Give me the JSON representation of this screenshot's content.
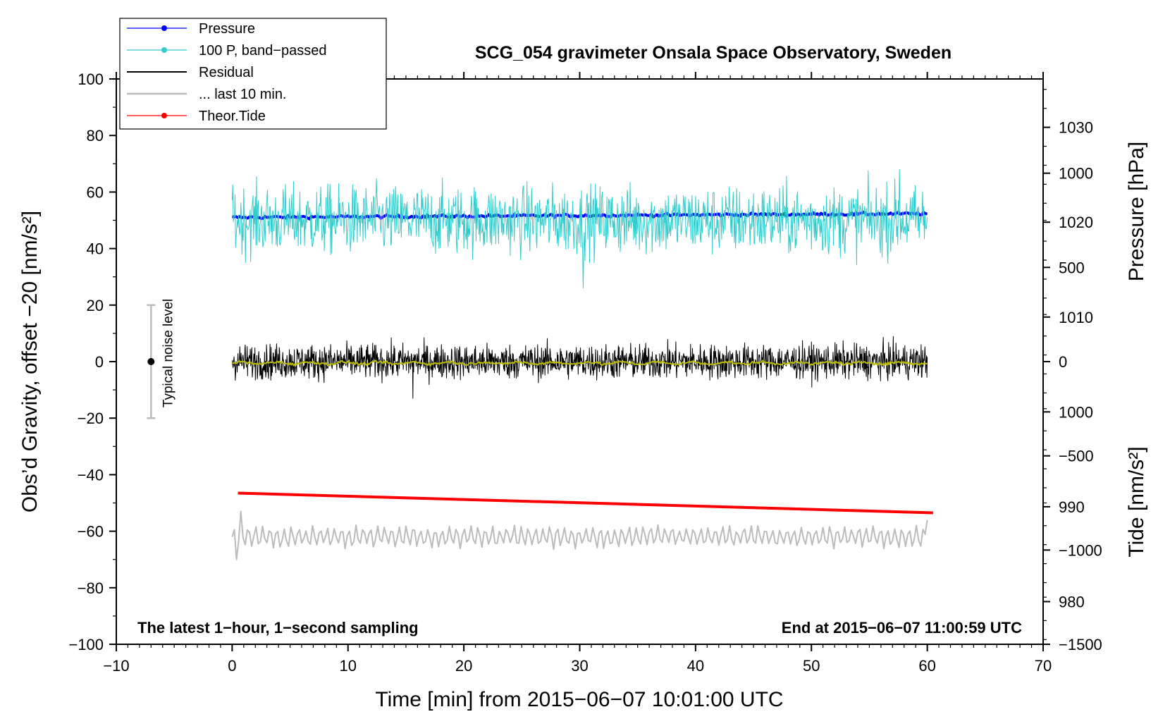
{
  "chart_data": {
    "type": "line",
    "title": "SCG_054 gravimeter Onsala Space Observatory, Sweden",
    "xlabel": "Time [min] from 2015−06−07 10:01:00 UTC",
    "ylabel_left": "Obs’d Gravity, offset −20 [nm/s²]",
    "ylabel_right_top": "Pressure [hPa]",
    "ylabel_right_bottom": "Tide [nm/s²]",
    "xlim": [
      -10,
      70
    ],
    "ylim": [
      -100,
      100
    ],
    "x_ticks": [
      "−10",
      "0",
      "10",
      "20",
      "30",
      "40",
      "50",
      "60",
      "70"
    ],
    "x_tick_values": [
      -10,
      0,
      10,
      20,
      30,
      40,
      50,
      60,
      70
    ],
    "y_ticks": [
      "100",
      "80",
      "60",
      "40",
      "20",
      "0",
      "−20",
      "−40",
      "−60",
      "−80",
      "−100"
    ],
    "y_tick_values": [
      100,
      80,
      60,
      40,
      20,
      0,
      -20,
      -40,
      -60,
      -80,
      -100
    ],
    "pressure_axis": {
      "ticks": [
        "1030",
        "1020",
        "1010",
        "1000",
        "990",
        "980"
      ],
      "tick_values": [
        1030,
        1020,
        1010,
        1000,
        990,
        980
      ],
      "range_hpa": [
        975.5,
        1035.1
      ]
    },
    "tide_axis": {
      "ticks": [
        "1000",
        "500",
        "0",
        "−500",
        "−1000",
        "−1500"
      ],
      "tick_values": [
        1000,
        500,
        0,
        -500,
        -1000,
        -1500
      ],
      "range_nms2": [
        -1500,
        1500
      ]
    },
    "series": [
      {
        "name": "Pressure",
        "color": "#0000ff",
        "x_range": [
          0,
          60
        ],
        "start_hpa": 1020.5,
        "end_hpa": 1020.9,
        "noise_amplitude_hpa": 0.2
      },
      {
        "name": "100 P, band−passed",
        "color": "#33cccc",
        "x_range": [
          0,
          60
        ],
        "mean": 50,
        "noise_amplitude": 8,
        "min": 26,
        "max": 68
      },
      {
        "name": "Residual",
        "color": "#000000",
        "x_range": [
          0,
          60
        ],
        "mean": 0,
        "noise_amplitude": 4,
        "min": -13,
        "max": 9
      },
      {
        "name": "... last 10 min.",
        "color": "#bbbbbb",
        "x_range": [
          0,
          60
        ],
        "mean": -62,
        "noise_amplitude": 4,
        "min": -70,
        "max": -53
      },
      {
        "name": "Theor.Tide",
        "color": "#ff0000",
        "x_start": 0.5,
        "x_end": 60.5,
        "y_start": -46.5,
        "y_end": -53.5
      },
      {
        "name": "Residual smoothed",
        "color": "#bbbb00",
        "x_range": [
          0,
          60
        ],
        "mean": -0.5,
        "noise_amplitude": 0.6
      }
    ],
    "noise_level": {
      "label": "Typical noise level",
      "x": -7,
      "y_center": 0,
      "y_low": -20,
      "y_high": 20
    },
    "annotations": {
      "bottom_left": "The latest 1−hour, 1−second sampling",
      "bottom_right": "End at 2015−06−07 11:00:59 UTC"
    },
    "legend": {
      "placement": "top-left",
      "entries": [
        {
          "label": "Pressure",
          "color": "#0000ff",
          "marker": "dot"
        },
        {
          "label": "100 P, band−passed",
          "color": "#33cccc",
          "marker": "dot"
        },
        {
          "label": "Residual",
          "color": "#000000",
          "marker": "none"
        },
        {
          "label": "... last 10 min.",
          "color": "#bbbbbb",
          "marker": "none"
        },
        {
          "label": "Theor.Tide",
          "color": "#ff0000",
          "marker": "dot"
        }
      ]
    }
  }
}
